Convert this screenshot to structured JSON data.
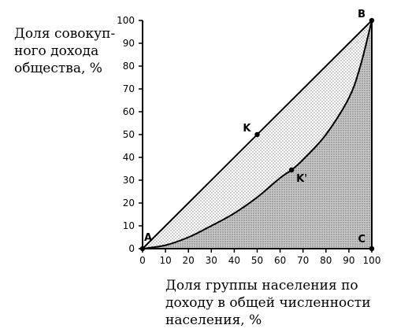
{
  "chart_data": {
    "type": "line",
    "ylabel_lines": [
      "Доля совокуп-",
      "ного дохода",
      "общества, %"
    ],
    "xlabel_lines": [
      "Доля группы населения по",
      "доходу в общей численности",
      "населения, %"
    ],
    "xlim": [
      0,
      100
    ],
    "ylim": [
      0,
      100
    ],
    "x_ticks": [
      0,
      10,
      20,
      30,
      40,
      50,
      60,
      70,
      80,
      90,
      100
    ],
    "y_ticks": [
      0,
      10,
      20,
      30,
      40,
      50,
      60,
      70,
      80,
      90,
      100
    ],
    "series": [
      {
        "key": "equality",
        "x": [
          0,
          100
        ],
        "y": [
          0,
          100
        ]
      },
      {
        "key": "lorenz",
        "x": [
          0,
          10,
          20,
          30,
          40,
          50,
          60,
          65,
          70,
          80,
          90,
          95,
          100
        ],
        "y": [
          0,
          1.5,
          5,
          10,
          15.5,
          22.5,
          31,
          34.5,
          39,
          50,
          66,
          80,
          100
        ]
      }
    ],
    "points": [
      {
        "label": "A",
        "x": 0,
        "y": 0,
        "label_pos": "above"
      },
      {
        "label": "B",
        "x": 100,
        "y": 100,
        "label_pos": "left"
      },
      {
        "label": "C",
        "x": 100,
        "y": 0,
        "label_pos": "above-left"
      },
      {
        "label": "K",
        "x": 50,
        "y": 50,
        "label_pos": "left"
      },
      {
        "label": "K'",
        "x": 65,
        "y": 34.5,
        "label_pos": "below-right"
      }
    ],
    "shading": {
      "between_equality_and_lorenz": "dotted",
      "below_lorenz": "dense-dotted"
    },
    "grid": false
  }
}
